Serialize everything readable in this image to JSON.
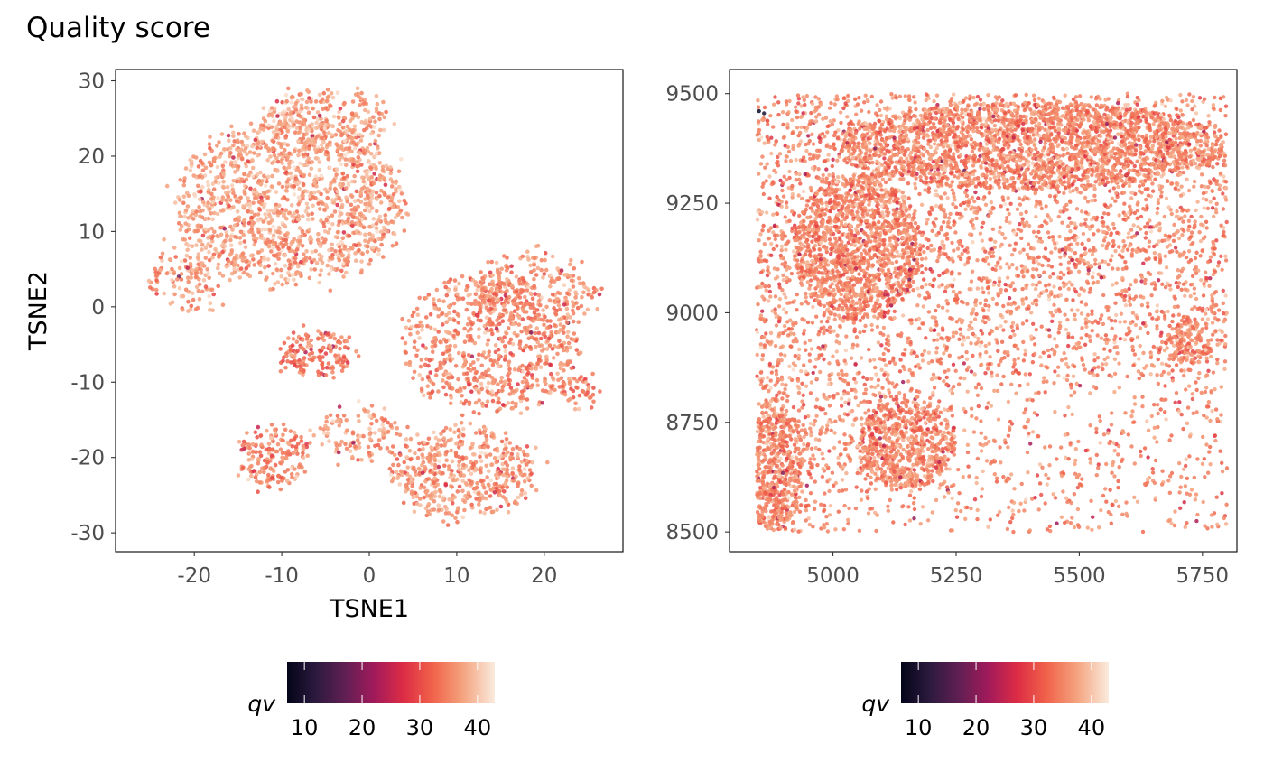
{
  "title": "Quality score",
  "chart_data": [
    {
      "type": "scatter",
      "id": "tsne",
      "xlabel": "TSNE1",
      "ylabel": "TSNE2",
      "xlim": [
        -29,
        29
      ],
      "ylim": [
        -32.5,
        31.5
      ],
      "xticks": [
        -20,
        -10,
        0,
        10,
        20
      ],
      "yticks": [
        -30,
        -20,
        -10,
        0,
        10,
        20,
        30
      ],
      "xtick_labels": [
        "-20",
        "-10",
        "0",
        "10",
        "20"
      ],
      "ytick_labels": [
        "-30",
        "-20",
        "-10",
        "0",
        "10",
        "20",
        "30"
      ],
      "color_variable": "qv",
      "clusters": [
        {
          "cx": -9,
          "cy": 14,
          "rx": 13,
          "ry": 11,
          "n": 1400,
          "qv": 37
        },
        {
          "cx": -5,
          "cy": 25,
          "rx": 7,
          "ry": 4,
          "n": 250,
          "qv": 37
        },
        {
          "cx": -21,
          "cy": 4,
          "rx": 4,
          "ry": 5,
          "n": 120,
          "qv": 36
        },
        {
          "cx": -6,
          "cy": -6,
          "rx": 4,
          "ry": 3,
          "n": 150,
          "qv": 34
        },
        {
          "cx": 14,
          "cy": -5,
          "rx": 10,
          "ry": 9,
          "n": 700,
          "qv": 35
        },
        {
          "cx": 19,
          "cy": 2,
          "rx": 7,
          "ry": 5,
          "n": 250,
          "qv": 36
        },
        {
          "cx": 11,
          "cy": -22,
          "rx": 8,
          "ry": 6,
          "n": 500,
          "qv": 36
        },
        {
          "cx": -11,
          "cy": -20,
          "rx": 4,
          "ry": 4,
          "n": 180,
          "qv": 35
        },
        {
          "cx": -1,
          "cy": -17,
          "rx": 5,
          "ry": 3,
          "n": 120,
          "qv": 36
        },
        {
          "cx": 24,
          "cy": -11,
          "rx": 2.5,
          "ry": 2,
          "n": 50,
          "qv": 34
        }
      ],
      "legend": {
        "title": "qv",
        "range": [
          7,
          43
        ],
        "ticks": [
          10,
          20,
          30,
          40
        ],
        "tick_labels": [
          "10",
          "20",
          "30",
          "40"
        ],
        "position": "bottom"
      }
    },
    {
      "type": "scatter",
      "id": "spatial",
      "xlim": [
        4790,
        5820
      ],
      "ylim": [
        8455,
        9555
      ],
      "xticks": [
        5000,
        5250,
        5500,
        5750
      ],
      "yticks": [
        8500,
        8750,
        9000,
        9250,
        9500
      ],
      "xtick_labels": [
        "5000",
        "5250",
        "5500",
        "5750"
      ],
      "ytick_labels": [
        "8500",
        "8750",
        "9000",
        "9250",
        "9500"
      ],
      "color_variable": "qv",
      "region": {
        "x": [
          4845,
          5800
        ],
        "y": [
          8500,
          9500
        ]
      },
      "dense_regions": [
        {
          "cx": 5050,
          "cy": 9150,
          "rx": 130,
          "ry": 170
        },
        {
          "cx": 5400,
          "cy": 9380,
          "rx": 400,
          "ry": 100
        },
        {
          "cx": 4880,
          "cy": 8650,
          "rx": 60,
          "ry": 150
        },
        {
          "cx": 5150,
          "cy": 8700,
          "rx": 100,
          "ry": 100
        },
        {
          "cx": 5720,
          "cy": 8930,
          "rx": 50,
          "ry": 50
        }
      ],
      "low_qv_spots": [
        {
          "x": 4850,
          "y": 9460,
          "qv": 8
        },
        {
          "x": 4860,
          "y": 9455,
          "qv": 10
        }
      ],
      "legend": {
        "title": "qv",
        "range": [
          7,
          43
        ],
        "ticks": [
          10,
          20,
          30,
          40
        ],
        "tick_labels": [
          "10",
          "20",
          "30",
          "40"
        ],
        "position": "bottom"
      }
    }
  ]
}
